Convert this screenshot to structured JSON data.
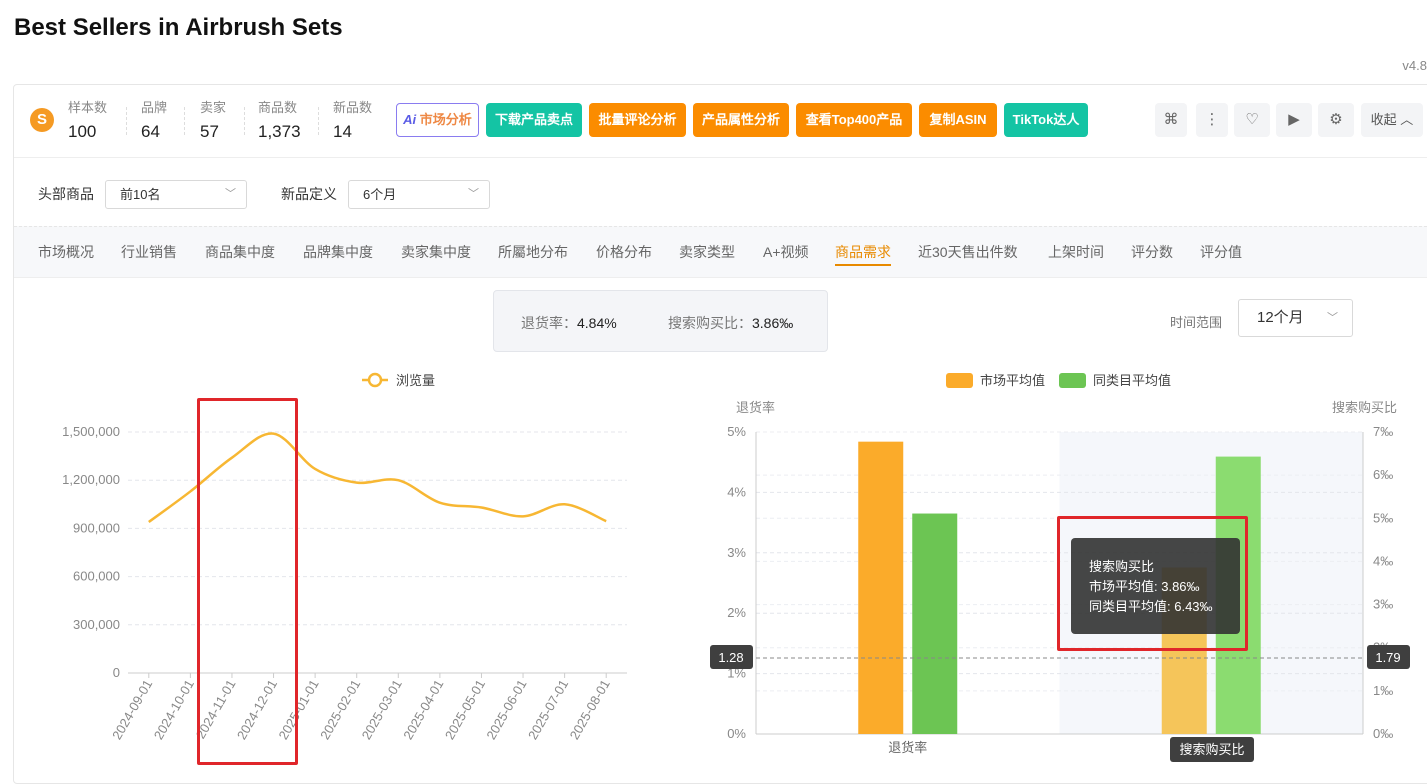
{
  "page": {
    "title": "Best Sellers in Airbrush Sets",
    "version": "v4.8"
  },
  "stats": [
    {
      "label": "样本数",
      "value": "100"
    },
    {
      "label": "品牌",
      "value": "64"
    },
    {
      "label": "卖家",
      "value": "57"
    },
    {
      "label": "商品数",
      "value": "1,373"
    },
    {
      "label": "新品数",
      "value": "14"
    }
  ],
  "action_buttons": {
    "ai_prefix": "Ai",
    "ai_market": "市场分析",
    "download": "下载产品卖点",
    "review": "批量评论分析",
    "attr": "产品属性分析",
    "top400": "查看Top400产品",
    "copy_asin": "复制ASIN",
    "tiktok": "TikTok达人"
  },
  "toolbar": {
    "collapse": "收起",
    "collapse_icon": "chevron-up-icon"
  },
  "filters": {
    "top_label": "头部商品",
    "top_value": "前10名",
    "new_label": "新品定义",
    "new_value": "6个月"
  },
  "tabs": [
    "市场概况",
    "行业销售",
    "商品集中度",
    "品牌集中度",
    "卖家集中度",
    "所屬地分布",
    "价格分布",
    "卖家类型",
    "A+视频",
    "商品需求",
    "近30天售出件数",
    "上架时间",
    "评分数",
    "评分值"
  ],
  "active_tab": "商品需求",
  "metrics": {
    "return_label": "退货率：",
    "return_value": "4.84%",
    "search_label": "搜索购买比：",
    "search_value": "3.86‰"
  },
  "time_range": {
    "label": "时间范围",
    "value": "12个月"
  },
  "chart_data": [
    {
      "type": "line",
      "legend": [
        "浏览量"
      ],
      "color": "#f7b733",
      "x": [
        "2024-09-01",
        "2024-10-01",
        "2024-11-01",
        "2024-12-01",
        "2025-01-01",
        "2025-02-01",
        "2025-03-01",
        "2025-04-01",
        "2025-05-01",
        "2025-06-01",
        "2025-07-01",
        "2025-08-01"
      ],
      "x_tick_labels": [
        "2024-09-01",
        "2024-10-01",
        "2024-11-01",
        "2024-12-01",
        "2025-01-01",
        "2025-02-01",
        "2025-03-01",
        "2025-04-01",
        "2025-05-01",
        "2025-06-01",
        "2025-07-01",
        "2025-08-01"
      ],
      "values": [
        940000,
        1130000,
        1340000,
        1490000,
        1270000,
        1185000,
        1200000,
        1060000,
        1030000,
        975000,
        1050000,
        945000
      ],
      "y_ticks": [
        0,
        300000,
        600000,
        900000,
        1200000,
        1500000
      ],
      "y_tick_labels": [
        "0",
        "300,000",
        "600,000",
        "900,000",
        "1,200,000",
        "1,500,000"
      ],
      "ylim": [
        0,
        1500000
      ],
      "grid": true
    },
    {
      "type": "bar",
      "categories": [
        "退货率",
        "搜索购买比"
      ],
      "series": [
        {
          "name": "市场平均值",
          "color": "#fbab2a",
          "values": [
            4.84,
            3.86
          ]
        },
        {
          "name": "同类目平均值",
          "color": "#6cc553",
          "values": [
            3.65,
            6.43
          ]
        }
      ],
      "left_axis": {
        "label": "退货率",
        "ylim": [
          0,
          5
        ],
        "ticks": [
          "0%",
          "1%",
          "2%",
          "3%",
          "4%",
          "5%"
        ]
      },
      "right_axis": {
        "label": "搜索购买比",
        "ylim": [
          0,
          7
        ],
        "ticks": [
          "0‰",
          "1‰",
          "2‰",
          "3‰",
          "4‰",
          "5‰",
          "6‰",
          "7‰"
        ]
      },
      "crosshair": {
        "left_value": "1.28",
        "right_value": "1.79"
      },
      "tooltip": {
        "title": "搜索购买比",
        "line1": "市场平均值: 3.86‰",
        "line2": "同类目平均值: 6.43‰"
      },
      "axis_pointer_label": "搜索购买比",
      "grid": true
    }
  ]
}
